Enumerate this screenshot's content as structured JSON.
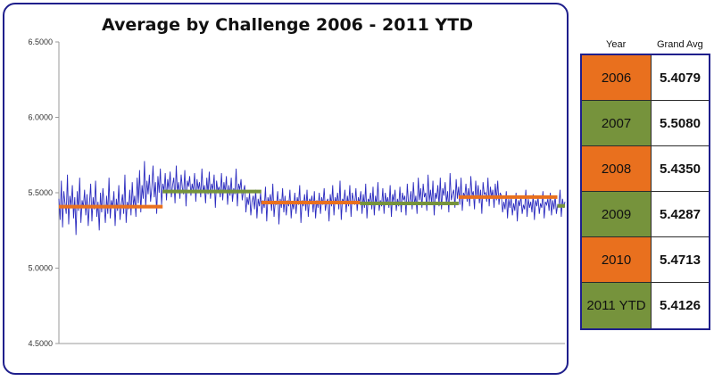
{
  "chart_data": {
    "type": "line",
    "title": "Average by Challenge 2006 - 2011 YTD",
    "xlabel": "",
    "ylabel": "",
    "ylim": [
      4.5,
      6.5
    ],
    "yticks": [
      "4.5000",
      "5.0000",
      "5.5000",
      "6.0000",
      "6.5000"
    ],
    "grid": false,
    "legend": "none",
    "series": [
      {
        "values": [
          5.46,
          5.32,
          5.58,
          5.27,
          5.51,
          5.43,
          5.36,
          5.62,
          5.29,
          5.48,
          5.41,
          5.55,
          5.33,
          5.47,
          5.22,
          5.51,
          5.38,
          5.6,
          5.3,
          5.45,
          5.4,
          5.52,
          5.35,
          5.49,
          5.28,
          5.43,
          5.56,
          5.31,
          5.47,
          5.39,
          5.58,
          5.34,
          5.44,
          5.25,
          5.5,
          5.37,
          5.53,
          5.42,
          5.3,
          5.48,
          5.36,
          5.6,
          5.33,
          5.45,
          5.4,
          5.51,
          5.28,
          5.46,
          5.38,
          5.55,
          5.32,
          5.42,
          5.49,
          5.36,
          5.62,
          5.3,
          5.44,
          5.39,
          5.52,
          5.35,
          5.57,
          5.41,
          5.48,
          5.34,
          5.6,
          5.43,
          5.65,
          5.37,
          5.55,
          5.46,
          5.71,
          5.4,
          5.58,
          5.49,
          5.62,
          5.44,
          5.53,
          5.68,
          5.47,
          5.57,
          5.36,
          5.61,
          5.5,
          5.66,
          5.42,
          5.56,
          5.51,
          5.63,
          5.45,
          5.59,
          5.52,
          5.64,
          5.47,
          5.55,
          5.6,
          5.43,
          5.68,
          5.5,
          5.57,
          5.46,
          5.62,
          5.53,
          5.49,
          5.65,
          5.41,
          5.58,
          5.54,
          5.61,
          5.48,
          5.56,
          5.51,
          5.63,
          5.44,
          5.59,
          5.52,
          5.57,
          5.47,
          5.66,
          5.5,
          5.55,
          5.43,
          5.6,
          5.49,
          5.64,
          5.46,
          5.56,
          5.52,
          5.62,
          5.4,
          5.58,
          5.51,
          5.54,
          5.47,
          5.63,
          5.45,
          5.57,
          5.5,
          5.61,
          5.42,
          5.55,
          5.48,
          5.6,
          5.44,
          5.53,
          5.49,
          5.66,
          5.41,
          5.56,
          5.52,
          5.59,
          5.45,
          5.51,
          5.55,
          5.37,
          5.47,
          5.42,
          5.5,
          5.35,
          5.44,
          5.48,
          5.39,
          5.52,
          5.33,
          5.46,
          5.41,
          5.5,
          5.36,
          5.45,
          5.4,
          5.54,
          5.31,
          5.47,
          5.43,
          5.49,
          5.38,
          5.56,
          5.34,
          5.44,
          5.42,
          5.51,
          5.29,
          5.46,
          5.4,
          5.53,
          5.37,
          5.48,
          5.35,
          5.45,
          5.41,
          5.52,
          5.33,
          5.44,
          5.39,
          5.5,
          5.36,
          5.47,
          5.42,
          5.55,
          5.3,
          5.45,
          5.41,
          5.49,
          5.38,
          5.52,
          5.34,
          5.46,
          5.43,
          5.48,
          5.37,
          5.51,
          5.33,
          5.45,
          5.4,
          5.5,
          5.36,
          5.47,
          5.42,
          5.53,
          5.38,
          5.44,
          5.46,
          5.31,
          5.49,
          5.41,
          5.55,
          5.35,
          5.47,
          5.43,
          5.5,
          5.39,
          5.58,
          5.32,
          5.46,
          5.44,
          5.52,
          5.37,
          5.48,
          5.41,
          5.55,
          5.34,
          5.5,
          5.45,
          5.42,
          5.53,
          5.38,
          5.47,
          5.43,
          5.51,
          5.36,
          5.49,
          5.4,
          5.56,
          5.33,
          5.46,
          5.44,
          5.5,
          5.39,
          5.54,
          5.35,
          5.48,
          5.42,
          5.57,
          5.38,
          5.45,
          5.41,
          5.53,
          5.36,
          5.5,
          5.43,
          5.47,
          5.4,
          5.55,
          5.34,
          5.49,
          5.44,
          5.52,
          5.38,
          5.46,
          5.41,
          5.54,
          5.37,
          5.5,
          5.45,
          5.48,
          5.35,
          5.56,
          5.43,
          5.44,
          5.51,
          5.39,
          5.57,
          5.42,
          5.48,
          5.36,
          5.6,
          5.45,
          5.53,
          5.4,
          5.56,
          5.47,
          5.5,
          5.38,
          5.62,
          5.44,
          5.52,
          5.42,
          5.58,
          5.35,
          5.5,
          5.46,
          5.55,
          5.41,
          5.6,
          5.39,
          5.53,
          5.48,
          5.57,
          5.43,
          5.51,
          5.37,
          5.63,
          5.45,
          5.49,
          5.52,
          5.4,
          5.59,
          5.46,
          5.54,
          5.42,
          5.6,
          5.38,
          5.5,
          5.47,
          5.56,
          5.44,
          5.53,
          5.41,
          5.61,
          5.48,
          5.51,
          5.39,
          5.58,
          5.46,
          5.55,
          5.43,
          5.52,
          5.36,
          5.57,
          5.49,
          5.5,
          5.44,
          5.6,
          5.41,
          5.54,
          5.47,
          5.52,
          5.4,
          5.56,
          5.45,
          5.58,
          5.42,
          5.5,
          5.48,
          5.37,
          5.44,
          5.39,
          5.51,
          5.33,
          5.46,
          5.4,
          5.47,
          5.35,
          5.43,
          5.38,
          5.5,
          5.31,
          5.45,
          5.41,
          5.48,
          5.36,
          5.42,
          5.39,
          5.52,
          5.34,
          5.46,
          5.4,
          5.44,
          5.37,
          5.49,
          5.32,
          5.45,
          5.41,
          5.47,
          5.36,
          5.43,
          5.4,
          5.51,
          5.33,
          5.44,
          5.42,
          5.46,
          5.38,
          5.5,
          5.35,
          5.45,
          5.39,
          5.48,
          5.36,
          5.42,
          5.41,
          5.52,
          5.34,
          5.46,
          5.4,
          5.44
        ],
        "color": "#2b2bbf"
      },
      {
        "name": "Grand Avg",
        "values": [
          5.4079,
          5.508,
          5.435,
          5.4287,
          5.4713,
          5.4126
        ],
        "segments": [
          "2006",
          "2007",
          "2008",
          "2009",
          "2010",
          "2011 YTD"
        ],
        "colors": [
          "#e9701e",
          "#76933c",
          "#e9701e",
          "#76933c",
          "#e9701e",
          "#76933c"
        ]
      }
    ]
  },
  "table": {
    "headers": {
      "year": "Year",
      "grand_avg": "Grand Avg"
    },
    "rows": [
      {
        "year": "2006",
        "value": "5.4079",
        "color": "#e9701e"
      },
      {
        "year": "2007",
        "value": "5.5080",
        "color": "#76933c"
      },
      {
        "year": "2008",
        "value": "5.4350",
        "color": "#e9701e"
      },
      {
        "year": "2009",
        "value": "5.4287",
        "color": "#76933c"
      },
      {
        "year": "2010",
        "value": "5.4713",
        "color": "#e9701e"
      },
      {
        "year": "2011 YTD",
        "value": "5.4126",
        "color": "#76933c"
      }
    ]
  }
}
